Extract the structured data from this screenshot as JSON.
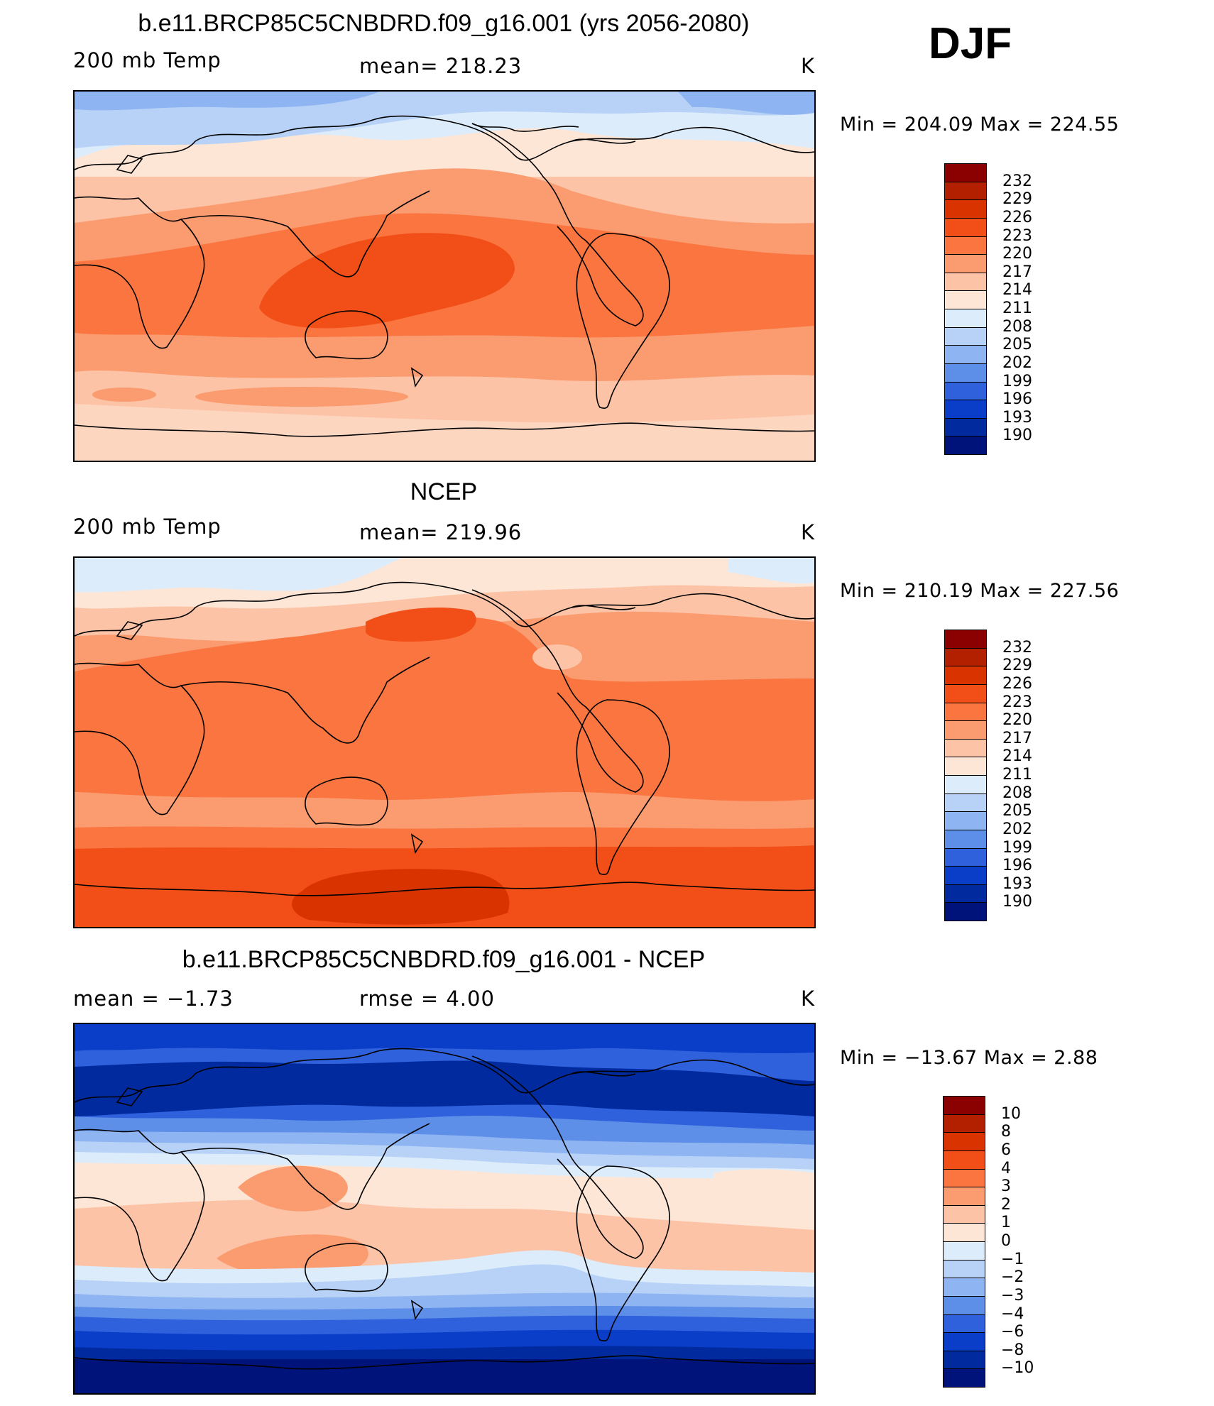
{
  "season": "DJF",
  "panels": [
    {
      "title": "b.e11.BRCP85C5CNBDRD.f09_g16.001 (yrs 2056-2080)",
      "left_label": "200 mb Temp",
      "center_label": "mean=  218.23",
      "unit": "K",
      "minmax": "Min  =  204.09  Max  =  224.55"
    },
    {
      "title": "NCEP",
      "left_label": "200 mb Temp",
      "center_label": "mean=  219.96",
      "unit": "K",
      "minmax": "Min  =  210.19  Max  =  227.56"
    },
    {
      "title": "b.e11.BRCP85C5CNBDRD.f09_g16.001 - NCEP",
      "left_label": "mean  =    −1.73",
      "center_label": "rmse  =     4.00",
      "unit": "K",
      "minmax": "Min  =  −13.67  Max  =     2.88"
    }
  ],
  "colorbars": {
    "temperature": {
      "levels": [
        "232",
        "229",
        "226",
        "223",
        "220",
        "217",
        "214",
        "211",
        "208",
        "205",
        "202",
        "199",
        "196",
        "193",
        "190"
      ],
      "colors": [
        "#8b0000",
        "#b22000",
        "#d93300",
        "#f24e17",
        "#fa7540",
        "#fb9b70",
        "#fcc3a6",
        "#fde6d6",
        "#dcecfb",
        "#b7d2f6",
        "#8fb4f2",
        "#5d8ee8",
        "#2f61dd",
        "#0a3ec8",
        "#002a9e",
        "#00137a"
      ]
    },
    "difference": {
      "levels": [
        "10",
        "8",
        "6",
        "4",
        "3",
        "2",
        "1",
        "0",
        "−1",
        "−2",
        "−3",
        "−4",
        "−6",
        "−8",
        "−10"
      ],
      "colors": [
        "#8b0000",
        "#b22000",
        "#d93300",
        "#f24e17",
        "#fa7540",
        "#fb9b70",
        "#fcc3a6",
        "#fde6d6",
        "#dcecfb",
        "#b7d2f6",
        "#8fb4f2",
        "#5d8ee8",
        "#2f61dd",
        "#0a3ec8",
        "#002a9e",
        "#00137a"
      ]
    }
  },
  "chart_data": [
    {
      "type": "heatmap",
      "title": "b.e11.BRCP85C5CNBDRD.f09_g16.001 (yrs 2056-2080)",
      "variable": "200 mb Temp",
      "unit": "K",
      "mean": 218.23,
      "min": 204.09,
      "max": 224.55,
      "contour_levels": [
        190,
        193,
        196,
        199,
        202,
        205,
        208,
        211,
        214,
        217,
        220,
        223,
        226,
        229,
        232
      ]
    },
    {
      "type": "heatmap",
      "title": "NCEP",
      "variable": "200 mb Temp",
      "unit": "K",
      "mean": 219.96,
      "min": 210.19,
      "max": 227.56,
      "contour_levels": [
        190,
        193,
        196,
        199,
        202,
        205,
        208,
        211,
        214,
        217,
        220,
        223,
        226,
        229,
        232
      ]
    },
    {
      "type": "heatmap",
      "title": "b.e11.BRCP85C5CNBDRD.f09_g16.001 - NCEP",
      "unit": "K",
      "mean": -1.73,
      "rmse": 4.0,
      "min": -13.67,
      "max": 2.88,
      "contour_levels": [
        -10,
        -8,
        -6,
        -4,
        -3,
        -2,
        -1,
        0,
        1,
        2,
        3,
        4,
        6,
        8,
        10
      ]
    }
  ]
}
